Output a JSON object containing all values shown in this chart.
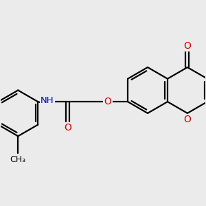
{
  "bg_color": "#ebebeb",
  "bond_color": "#000000",
  "bond_width": 1.6,
  "atom_colors": {
    "O": "#cc0000",
    "N": "#0000cc",
    "C": "#000000"
  },
  "font_size": 10,
  "figsize": [
    3.0,
    3.0
  ],
  "dpi": 100
}
